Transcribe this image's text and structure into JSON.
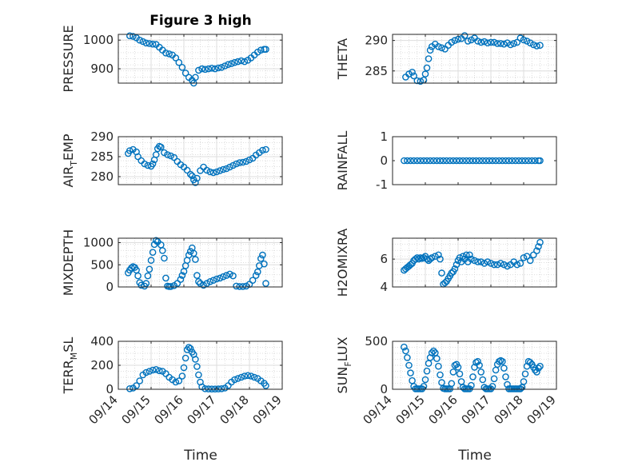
{
  "figure": {
    "title": "Figure 3 high",
    "xlabel": "Time",
    "x_ticks": [
      "09/14",
      "09/15",
      "09/16",
      "09/17",
      "09/18",
      "09/19"
    ],
    "marker_color": "#0072BD"
  },
  "chart_data": [
    {
      "type": "scatter",
      "id": "pressure",
      "col": 0,
      "row": 0,
      "title": "Figure 3 high",
      "ylabel": "PRESSURE",
      "ylabel_sub": "",
      "ylim": [
        850,
        1020
      ],
      "yticks": [
        900,
        1000
      ],
      "xlim": [
        0,
        5
      ],
      "x_tick_labels_shown": false,
      "grid": true,
      "minor_grid": true,
      "x": [
        0.35,
        0.45,
        0.55,
        0.65,
        0.75,
        0.85,
        0.95,
        1.05,
        1.15,
        1.25,
        1.35,
        1.45,
        1.55,
        1.65,
        1.75,
        1.85,
        1.95,
        2.05,
        2.15,
        2.25,
        2.3,
        2.35,
        2.45,
        2.55,
        2.65,
        2.75,
        2.85,
        2.95,
        3.05,
        3.15,
        3.25,
        3.35,
        3.45,
        3.55,
        3.65,
        3.75,
        3.85,
        3.95,
        4.05,
        4.15,
        4.25,
        4.35,
        4.45,
        4.5
      ],
      "y": [
        1015,
        1013,
        1008,
        1000,
        995,
        990,
        988,
        986,
        985,
        975,
        965,
        955,
        952,
        948,
        938,
        922,
        905,
        885,
        870,
        860,
        850,
        870,
        895,
        900,
        898,
        900,
        902,
        900,
        903,
        905,
        910,
        915,
        918,
        922,
        925,
        928,
        925,
        930,
        938,
        948,
        958,
        965,
        968,
        968
      ]
    },
    {
      "type": "scatter",
      "id": "theta",
      "col": 1,
      "row": 0,
      "ylabel": "THETA",
      "ylabel_sub": "",
      "ylim": [
        283,
        291
      ],
      "yticks": [
        285,
        290
      ],
      "xlim": [
        0,
        5
      ],
      "x_tick_labels_shown": false,
      "grid": true,
      "minor_grid": true,
      "x": [
        0.4,
        0.5,
        0.6,
        0.65,
        0.75,
        0.85,
        0.95,
        1.0,
        1.05,
        1.1,
        1.15,
        1.2,
        1.3,
        1.4,
        1.5,
        1.6,
        1.7,
        1.8,
        1.9,
        2.0,
        2.1,
        2.2,
        2.3,
        2.4,
        2.5,
        2.6,
        2.7,
        2.8,
        2.9,
        3.0,
        3.1,
        3.2,
        3.3,
        3.4,
        3.5,
        3.6,
        3.7,
        3.8,
        3.9,
        4.0,
        4.1,
        4.2,
        4.3,
        4.4,
        4.5
      ],
      "y": [
        284,
        284.5,
        284.8,
        284.2,
        283.4,
        283.3,
        283.5,
        284.5,
        285.5,
        287,
        288.4,
        289,
        289.4,
        289,
        288.8,
        288.6,
        289.2,
        289.7,
        290,
        290.2,
        290.3,
        290.8,
        289.9,
        290.1,
        290.4,
        289.9,
        289.7,
        289.8,
        289.6,
        289.7,
        289.7,
        289.5,
        289.5,
        289.4,
        289.6,
        289.3,
        289.5,
        289.7,
        290.4,
        290.1,
        289.9,
        289.6,
        289.3,
        289.1,
        289.2
      ]
    },
    {
      "type": "scatter",
      "id": "air_temp",
      "col": 0,
      "row": 1,
      "ylabel": "AIR",
      "ylabel_sub": "T",
      "ylabel_after": "EMP",
      "ylim": [
        278,
        290
      ],
      "yticks": [
        280,
        285,
        290
      ],
      "xlim": [
        0,
        5
      ],
      "x_tick_labels_shown": false,
      "grid": true,
      "minor_grid": true,
      "x": [
        0.3,
        0.35,
        0.45,
        0.55,
        0.6,
        0.7,
        0.8,
        0.9,
        1.0,
        1.05,
        1.1,
        1.15,
        1.2,
        1.25,
        1.3,
        1.4,
        1.5,
        1.6,
        1.7,
        1.8,
        1.9,
        2.0,
        2.1,
        2.2,
        2.25,
        2.3,
        2.35,
        2.4,
        2.5,
        2.6,
        2.7,
        2.8,
        2.9,
        3.0,
        3.1,
        3.2,
        3.3,
        3.4,
        3.5,
        3.6,
        3.7,
        3.8,
        3.9,
        4.0,
        4.1,
        4.2,
        4.3,
        4.4,
        4.5
      ],
      "y": [
        285.8,
        286.5,
        286.8,
        286.2,
        285,
        284,
        283.2,
        282.8,
        282.6,
        283.2,
        284.2,
        285.5,
        287,
        287.6,
        287.4,
        286,
        285.5,
        285.2,
        284.8,
        283.8,
        283,
        282.4,
        281.6,
        280.6,
        280.2,
        279.2,
        278.5,
        279.6,
        281.5,
        282.4,
        281.6,
        281.2,
        281,
        281.2,
        281.5,
        281.8,
        282,
        282.4,
        282.8,
        283.2,
        283.5,
        283.6,
        283.8,
        284.2,
        284.6,
        285.4,
        286,
        286.6,
        286.8
      ]
    },
    {
      "type": "scatter",
      "id": "rainfall",
      "col": 1,
      "row": 1,
      "ylabel": "RAINFALL",
      "ylabel_sub": "",
      "ylim": [
        -1,
        1
      ],
      "yticks": [
        -1,
        0,
        1
      ],
      "xlim": [
        0,
        5
      ],
      "x_tick_labels_shown": false,
      "grid": false,
      "minor_grid": false,
      "x": [
        0.35,
        0.45,
        0.55,
        0.65,
        0.75,
        0.85,
        0.95,
        1.05,
        1.15,
        1.25,
        1.35,
        1.45,
        1.55,
        1.65,
        1.75,
        1.85,
        1.95,
        2.05,
        2.15,
        2.25,
        2.35,
        2.45,
        2.55,
        2.65,
        2.75,
        2.85,
        2.95,
        3.05,
        3.15,
        3.25,
        3.35,
        3.45,
        3.55,
        3.65,
        3.75,
        3.85,
        3.95,
        4.05,
        4.15,
        4.25,
        4.35,
        4.45,
        4.5
      ],
      "y": [
        0,
        0,
        0,
        0,
        0,
        0,
        0,
        0,
        0,
        0,
        0,
        0,
        0,
        0,
        0,
        0,
        0,
        0,
        0,
        0,
        0,
        0,
        0,
        0,
        0,
        0,
        0,
        0,
        0,
        0,
        0,
        0,
        0,
        0,
        0,
        0,
        0,
        0,
        0,
        0,
        0,
        0,
        0
      ]
    },
    {
      "type": "scatter",
      "id": "mixdepth",
      "col": 0,
      "row": 2,
      "ylabel": "MIXDEPTH",
      "ylabel_sub": "",
      "ylim": [
        0,
        1100
      ],
      "yticks": [
        0,
        500,
        1000
      ],
      "xlim": [
        0,
        5
      ],
      "x_tick_labels_shown": false,
      "grid": true,
      "minor_grid": true,
      "x": [
        0.3,
        0.35,
        0.4,
        0.45,
        0.5,
        0.55,
        0.6,
        0.65,
        0.7,
        0.8,
        0.85,
        0.9,
        0.95,
        1.0,
        1.05,
        1.1,
        1.15,
        1.2,
        1.3,
        1.35,
        1.4,
        1.45,
        1.5,
        1.55,
        1.6,
        1.7,
        1.8,
        1.9,
        1.95,
        2.0,
        2.05,
        2.1,
        2.15,
        2.2,
        2.25,
        2.3,
        2.35,
        2.4,
        2.45,
        2.5,
        2.6,
        2.7,
        2.8,
        2.9,
        3.0,
        3.1,
        3.2,
        3.3,
        3.4,
        3.5,
        3.6,
        3.7,
        3.8,
        3.9,
        4.0,
        4.1,
        4.2,
        4.25,
        4.3,
        4.35,
        4.4,
        4.45,
        4.5
      ],
      "y": [
        320,
        380,
        430,
        460,
        440,
        380,
        250,
        100,
        40,
        20,
        80,
        250,
        400,
        600,
        780,
        960,
        1050,
        1020,
        950,
        820,
        650,
        200,
        20,
        10,
        10,
        30,
        80,
        170,
        260,
        350,
        480,
        600,
        720,
        800,
        880,
        760,
        620,
        260,
        120,
        80,
        40,
        80,
        120,
        150,
        180,
        200,
        230,
        260,
        290,
        250,
        20,
        10,
        10,
        20,
        60,
        150,
        260,
        340,
        480,
        640,
        720,
        520,
        80
      ]
    },
    {
      "type": "scatter",
      "id": "h2omixra",
      "col": 1,
      "row": 2,
      "ylabel": "H2OMIXRA",
      "ylabel_sub": "",
      "ylim": [
        4,
        7.5
      ],
      "yticks": [
        4,
        6
      ],
      "xlim": [
        0,
        5
      ],
      "x_tick_labels_shown": false,
      "grid": true,
      "minor_grid": true,
      "x": [
        0.35,
        0.4,
        0.45,
        0.5,
        0.55,
        0.6,
        0.65,
        0.7,
        0.75,
        0.8,
        0.85,
        0.9,
        0.95,
        1.0,
        1.05,
        1.1,
        1.15,
        1.2,
        1.3,
        1.4,
        1.45,
        1.5,
        1.55,
        1.6,
        1.65,
        1.7,
        1.75,
        1.8,
        1.85,
        1.9,
        1.95,
        2.0,
        2.05,
        2.1,
        2.15,
        2.2,
        2.25,
        2.3,
        2.35,
        2.4,
        2.5,
        2.6,
        2.7,
        2.8,
        2.9,
        3.0,
        3.1,
        3.2,
        3.3,
        3.4,
        3.5,
        3.6,
        3.7,
        3.8,
        3.9,
        4.0,
        4.1,
        4.2,
        4.3,
        4.4,
        4.45,
        4.5
      ],
      "y": [
        5.2,
        5.3,
        5.4,
        5.5,
        5.6,
        5.7,
        5.9,
        6.0,
        6.1,
        6.0,
        6.1,
        6.05,
        6.1,
        6.2,
        6.0,
        5.9,
        6.0,
        6.1,
        6.2,
        6.3,
        6.0,
        5.0,
        4.2,
        4.3,
        4.4,
        4.6,
        4.8,
        5.0,
        5.1,
        5.3,
        5.6,
        5.9,
        6.1,
        5.8,
        6.2,
        6.0,
        6.3,
        5.8,
        6.3,
        6.0,
        5.9,
        5.8,
        5.8,
        5.7,
        5.8,
        5.7,
        5.6,
        5.6,
        5.7,
        5.6,
        5.5,
        5.6,
        5.8,
        5.6,
        5.7,
        6.1,
        6.2,
        5.9,
        6.3,
        6.6,
        6.9,
        7.2
      ]
    },
    {
      "type": "scatter",
      "id": "terr_msl",
      "col": 0,
      "row": 3,
      "ylabel": "TERR",
      "ylabel_sub": "M",
      "ylabel_after": "SL",
      "ylim": [
        0,
        400
      ],
      "yticks": [
        0,
        200,
        400
      ],
      "xlim": [
        0,
        5
      ],
      "x_ticks": [
        0,
        1,
        2,
        3,
        4,
        5
      ],
      "x_tick_labels_shown": true,
      "grid": true,
      "minor_grid": true,
      "x": [
        0.35,
        0.45,
        0.55,
        0.65,
        0.75,
        0.85,
        0.95,
        1.05,
        1.15,
        1.25,
        1.35,
        1.45,
        1.55,
        1.65,
        1.75,
        1.85,
        1.95,
        2.0,
        2.05,
        2.1,
        2.15,
        2.2,
        2.25,
        2.3,
        2.35,
        2.4,
        2.45,
        2.5,
        2.55,
        2.65,
        2.75,
        2.85,
        2.95,
        3.05,
        3.15,
        3.25,
        3.35,
        3.45,
        3.55,
        3.65,
        3.75,
        3.85,
        3.95,
        4.05,
        4.15,
        4.25,
        4.35,
        4.45,
        4.5
      ],
      "y": [
        5,
        10,
        30,
        70,
        120,
        140,
        150,
        160,
        165,
        155,
        150,
        130,
        100,
        80,
        60,
        70,
        110,
        180,
        260,
        330,
        350,
        340,
        310,
        290,
        250,
        190,
        120,
        60,
        20,
        5,
        3,
        2,
        2,
        3,
        5,
        10,
        30,
        60,
        80,
        90,
        100,
        110,
        115,
        110,
        100,
        90,
        70,
        50,
        30
      ]
    },
    {
      "type": "scatter",
      "id": "sun_flux",
      "col": 1,
      "row": 3,
      "ylabel": "SUN",
      "ylabel_sub": "F",
      "ylabel_after": "LUX",
      "ylim": [
        0,
        500
      ],
      "yticks": [
        0,
        500
      ],
      "xlim": [
        0,
        5
      ],
      "x_ticks": [
        0,
        1,
        2,
        3,
        4,
        5
      ],
      "x_tick_labels_shown": true,
      "grid": true,
      "minor_grid": true,
      "x": [
        0.35,
        0.4,
        0.45,
        0.5,
        0.55,
        0.6,
        0.65,
        0.7,
        0.75,
        0.8,
        0.85,
        0.9,
        0.95,
        1.0,
        1.05,
        1.1,
        1.15,
        1.2,
        1.25,
        1.3,
        1.35,
        1.4,
        1.45,
        1.5,
        1.55,
        1.6,
        1.65,
        1.7,
        1.75,
        1.8,
        1.85,
        1.9,
        1.95,
        2.0,
        2.05,
        2.1,
        2.15,
        2.2,
        2.25,
        2.3,
        2.35,
        2.4,
        2.45,
        2.5,
        2.55,
        2.6,
        2.65,
        2.7,
        2.75,
        2.8,
        2.85,
        2.9,
        2.95,
        3.0,
        3.05,
        3.1,
        3.15,
        3.2,
        3.25,
        3.3,
        3.35,
        3.4,
        3.45,
        3.5,
        3.55,
        3.6,
        3.65,
        3.7,
        3.75,
        3.8,
        3.85,
        3.9,
        3.95,
        4.0,
        4.05,
        4.1,
        4.15,
        4.2,
        4.25,
        4.3,
        4.35,
        4.4,
        4.45,
        4.5
      ],
      "y": [
        440,
        400,
        330,
        250,
        170,
        90,
        30,
        5,
        5,
        5,
        5,
        5,
        30,
        100,
        190,
        270,
        330,
        380,
        400,
        380,
        320,
        240,
        150,
        70,
        10,
        5,
        5,
        5,
        5,
        60,
        180,
        250,
        260,
        230,
        160,
        80,
        20,
        5,
        5,
        5,
        5,
        40,
        130,
        230,
        280,
        290,
        250,
        180,
        100,
        20,
        5,
        5,
        5,
        5,
        30,
        110,
        200,
        260,
        290,
        300,
        290,
        220,
        130,
        50,
        5,
        5,
        5,
        5,
        5,
        5,
        5,
        5,
        20,
        80,
        160,
        240,
        290,
        280,
        260,
        230,
        200,
        180,
        220,
        240
      ]
    }
  ]
}
